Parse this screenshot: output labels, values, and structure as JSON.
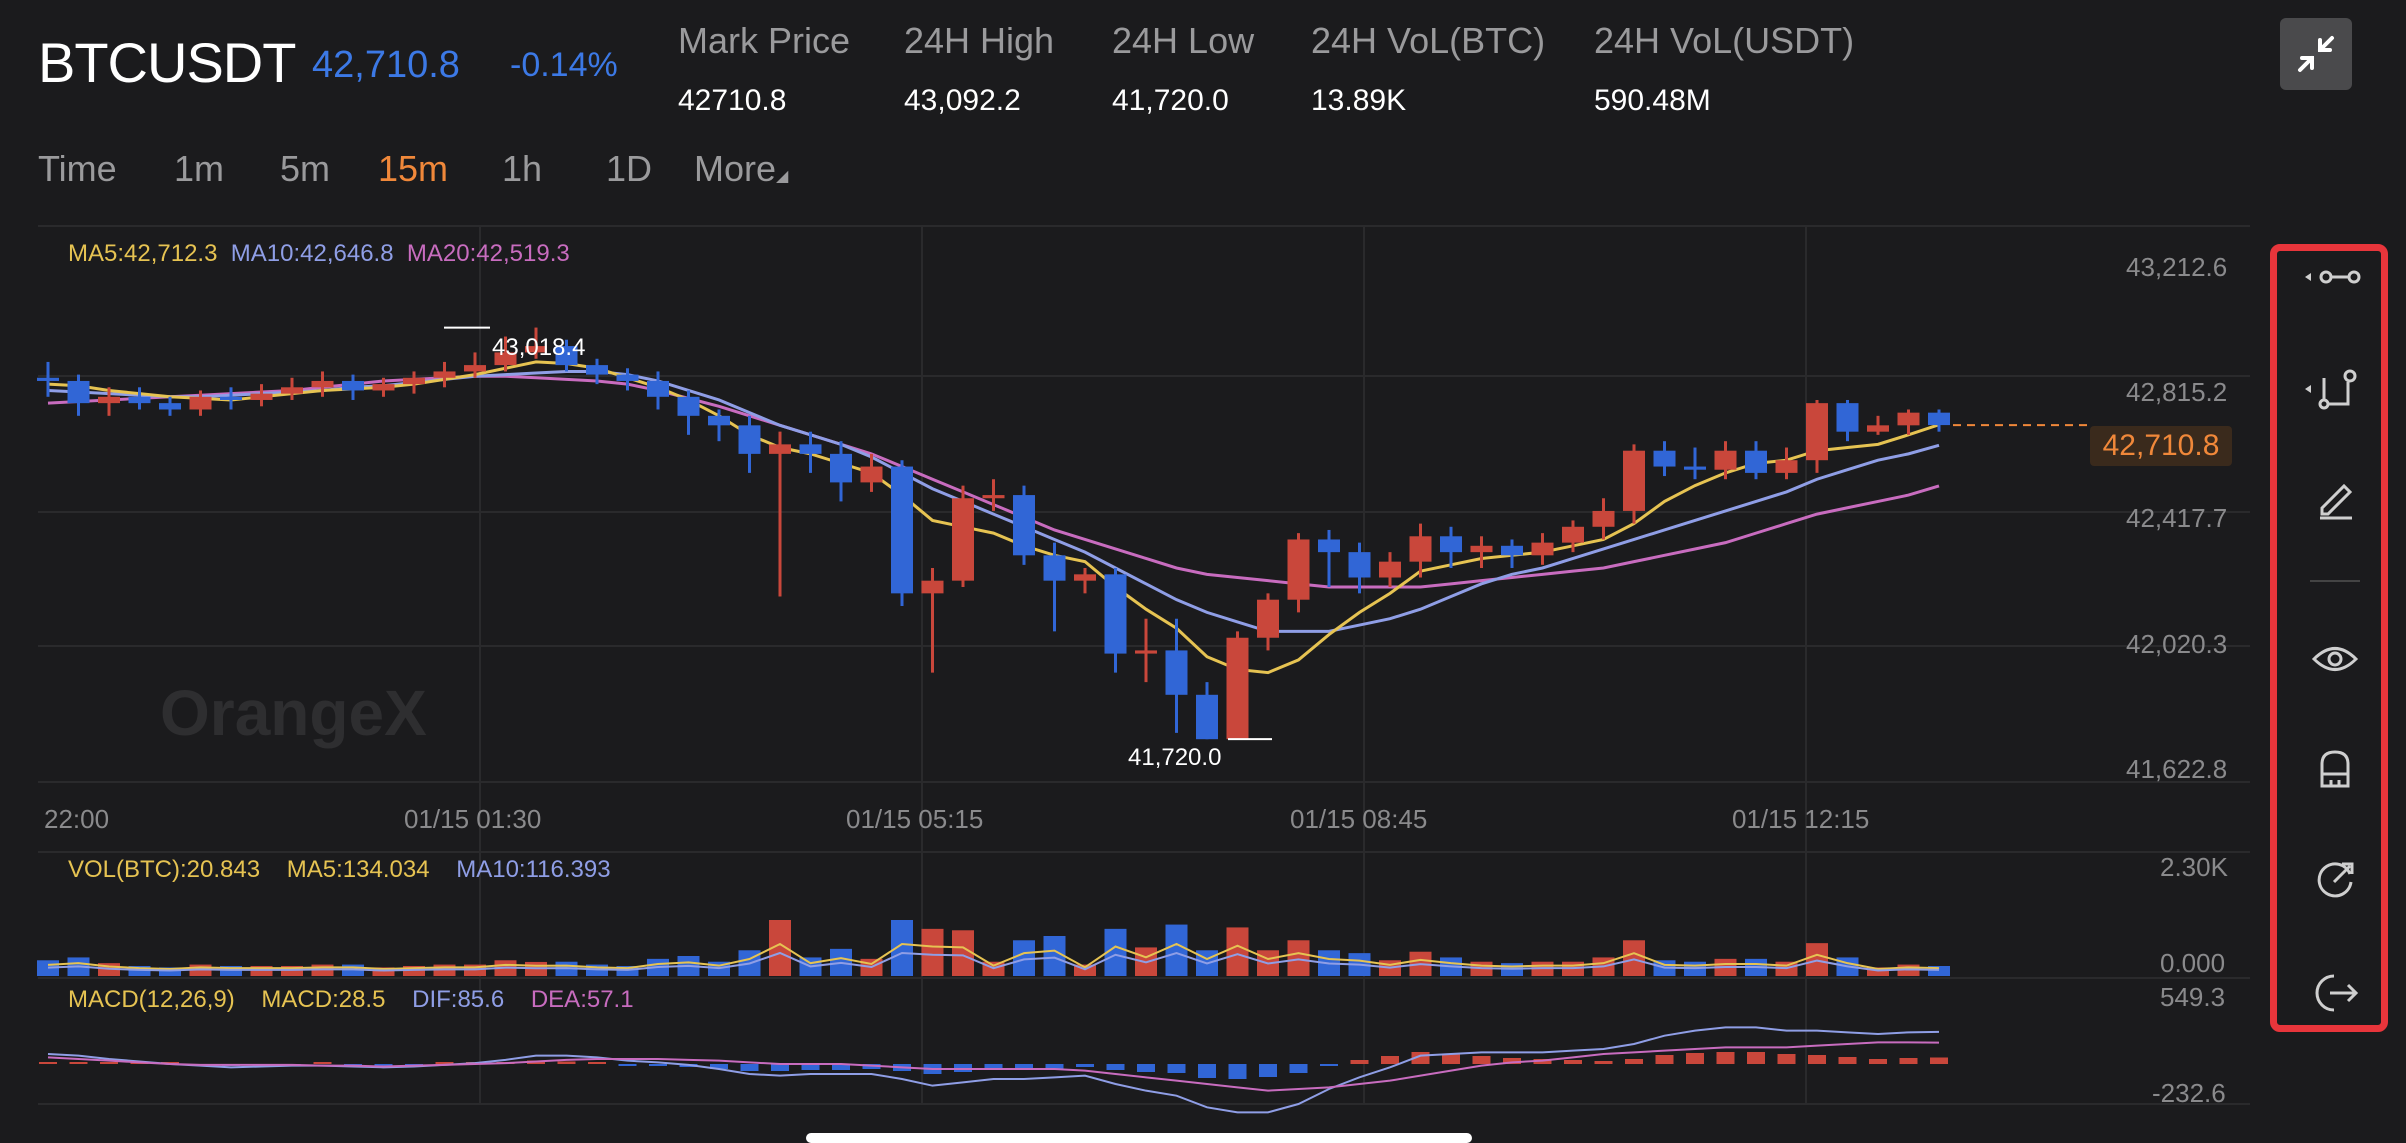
{
  "header": {
    "symbol": "BTCUSDT",
    "last_price": "42,710.8",
    "change": "-0.14%",
    "stats": [
      {
        "label": "Mark Price",
        "value": "42710.8"
      },
      {
        "label": "24H High",
        "value": "43,092.2"
      },
      {
        "label": "24H Low",
        "value": "41,720.0"
      },
      {
        "label": "24H VoL(BTC)",
        "value": "13.89K"
      },
      {
        "label": "24H VoL(USDT)",
        "value": "590.48M"
      }
    ]
  },
  "tabs": [
    {
      "label": "Time"
    },
    {
      "label": "1m"
    },
    {
      "label": "5m"
    },
    {
      "label": "15m",
      "active": true
    },
    {
      "label": "1h"
    },
    {
      "label": "1D"
    },
    {
      "label": "More"
    }
  ],
  "indicators": {
    "ma": [
      {
        "text": "MA5:42,712.3",
        "color": "#e6c352"
      },
      {
        "text": "MA10:42,646.8",
        "color": "#8f9ee6"
      },
      {
        "text": "MA20:42,519.3",
        "color": "#c86cbf"
      }
    ],
    "vol": [
      {
        "text": "VOL(BTC):20.843",
        "color": "#e6c352"
      },
      {
        "text": "MA5:134.034",
        "color": "#e6c352"
      },
      {
        "text": "MA10:116.393",
        "color": "#8f9ee6"
      }
    ],
    "macd": [
      {
        "text": "MACD(12,26,9)",
        "color": "#e6c352"
      },
      {
        "text": "MACD:28.5",
        "color": "#e6c352"
      },
      {
        "text": "DIF:85.6",
        "color": "#8f9ee6"
      },
      {
        "text": "DEA:57.1",
        "color": "#c86cbf"
      }
    ]
  },
  "price_axis": [
    "43,212.6",
    "42,815.2",
    "42,417.7",
    "42,020.3",
    "41,622.8"
  ],
  "current_price_tag": "42,710.8",
  "time_axis": [
    "22:00",
    "01/15 01:30",
    "01/15 05:15",
    "01/15 08:45",
    "01/15 12:15"
  ],
  "vol_axis": [
    "2.30K",
    "0.000"
  ],
  "macd_axis": [
    "549.3",
    "-232.6"
  ],
  "high_marker": "43,018.4",
  "low_marker": "41,720.0",
  "watermark": "OrangeX",
  "tools": [
    "line-tool-icon",
    "shape-tool-icon",
    "pencil-icon",
    "eye-icon",
    "magnet-icon",
    "refresh-icon",
    "exit-icon"
  ],
  "colors": {
    "up": "#c9473b",
    "down": "#3166d6",
    "ma5": "#e6c352",
    "ma10": "#8f9ee6",
    "ma20": "#c86cbf",
    "accent": "#f0883a",
    "highlight": "#e8353b"
  },
  "chart_data": {
    "type": "candlestick",
    "y_range": [
      41622.8,
      43212.6
    ],
    "candles": [
      [
        42860,
        42850,
        42910,
        42800
      ],
      [
        42850,
        42780,
        42870,
        42740
      ],
      [
        42780,
        42800,
        42830,
        42740
      ],
      [
        42800,
        42780,
        42830,
        42760
      ],
      [
        42780,
        42760,
        42800,
        42740
      ],
      [
        42760,
        42800,
        42820,
        42740
      ],
      [
        42800,
        42790,
        42830,
        42760
      ],
      [
        42790,
        42810,
        42840,
        42770
      ],
      [
        42810,
        42830,
        42860,
        42790
      ],
      [
        42830,
        42850,
        42880,
        42800
      ],
      [
        42850,
        42820,
        42870,
        42790
      ],
      [
        42820,
        42840,
        42860,
        42800
      ],
      [
        42840,
        42860,
        42880,
        42810
      ],
      [
        42860,
        42880,
        42910,
        42830
      ],
      [
        42880,
        42900,
        42940,
        42860
      ],
      [
        42900,
        42940,
        42990,
        42880
      ],
      [
        42940,
        42960,
        43018.4,
        42920
      ],
      [
        42960,
        42900,
        42980,
        42880
      ],
      [
        42900,
        42870,
        42920,
        42840
      ],
      [
        42870,
        42850,
        42890,
        42820
      ],
      [
        42850,
        42800,
        42880,
        42760
      ],
      [
        42800,
        42740,
        42820,
        42680
      ],
      [
        42740,
        42710,
        42760,
        42660
      ],
      [
        42710,
        42620,
        42740,
        42560
      ],
      [
        42620,
        42650,
        42690,
        42170
      ],
      [
        42650,
        42620,
        42690,
        42560
      ],
      [
        42620,
        42530,
        42660,
        42470
      ],
      [
        42530,
        42580,
        42620,
        42500
      ],
      [
        42580,
        42180,
        42600,
        42140
      ],
      [
        42180,
        42220,
        42260,
        41930
      ],
      [
        42220,
        42480,
        42520,
        42200
      ],
      [
        42480,
        42490,
        42540,
        42440
      ],
      [
        42490,
        42300,
        42520,
        42270
      ],
      [
        42300,
        42220,
        42340,
        42060
      ],
      [
        42220,
        42240,
        42260,
        42180
      ],
      [
        42240,
        41990,
        42260,
        41930
      ],
      [
        41990,
        42000,
        42100,
        41900
      ],
      [
        42000,
        41860,
        42100,
        41740
      ],
      [
        41860,
        41720,
        41900,
        41720
      ],
      [
        41720,
        42040,
        42060,
        41720
      ],
      [
        42040,
        42160,
        42180,
        42000
      ],
      [
        42160,
        42350,
        42370,
        42120
      ],
      [
        42350,
        42310,
        42380,
        42200
      ],
      [
        42310,
        42230,
        42340,
        42180
      ],
      [
        42230,
        42280,
        42310,
        42200
      ],
      [
        42280,
        42360,
        42400,
        42230
      ],
      [
        42360,
        42310,
        42390,
        42260
      ],
      [
        42310,
        42330,
        42360,
        42260
      ],
      [
        42330,
        42300,
        42350,
        42260
      ],
      [
        42300,
        42340,
        42370,
        42270
      ],
      [
        42340,
        42390,
        42410,
        42310
      ],
      [
        42390,
        42440,
        42480,
        42350
      ],
      [
        42440,
        42630,
        42650,
        42400
      ],
      [
        42630,
        42580,
        42660,
        42550
      ],
      [
        42580,
        42570,
        42640,
        42540
      ],
      [
        42570,
        42630,
        42660,
        42540
      ],
      [
        42630,
        42560,
        42660,
        42540
      ],
      [
        42560,
        42600,
        42640,
        42540
      ],
      [
        42600,
        42780,
        42790,
        42560
      ],
      [
        42780,
        42690,
        42790,
        42660
      ],
      [
        42690,
        42710,
        42740,
        42680
      ],
      [
        42710,
        42750,
        42760,
        42680
      ],
      [
        42750,
        42710.8,
        42760,
        42690
      ]
    ],
    "ma5": [
      42840,
      42835,
      42820,
      42810,
      42800,
      42795,
      42790,
      42800,
      42810,
      42820,
      42825,
      42830,
      42840,
      42855,
      42870,
      42890,
      42910,
      42905,
      42890,
      42860,
      42830,
      42790,
      42740,
      42680,
      42640,
      42620,
      42590,
      42560,
      42490,
      42410,
      42390,
      42370,
      42330,
      42300,
      42280,
      42200,
      42130,
      42070,
      41980,
      41940,
      41930,
      41970,
      42050,
      42120,
      42180,
      42250,
      42270,
      42290,
      42300,
      42310,
      42330,
      42350,
      42400,
      42470,
      42520,
      42560,
      42590,
      42600,
      42630,
      42640,
      42650,
      42680,
      42712
    ],
    "ma10": [
      42820,
      42815,
      42810,
      42805,
      42800,
      42800,
      42805,
      42810,
      42815,
      42820,
      42830,
      42835,
      42845,
      42855,
      42865,
      42870,
      42875,
      42880,
      42880,
      42870,
      42850,
      42820,
      42790,
      42750,
      42710,
      42680,
      42650,
      42610,
      42560,
      42510,
      42470,
      42430,
      42390,
      42350,
      42310,
      42260,
      42210,
      42160,
      42120,
      42090,
      42060,
      42060,
      42060,
      42080,
      42100,
      42130,
      42170,
      42210,
      42240,
      42260,
      42290,
      42320,
      42350,
      42380,
      42410,
      42440,
      42470,
      42500,
      42540,
      42570,
      42600,
      42620,
      42647
    ],
    "ma20": [
      42780,
      42785,
      42790,
      42795,
      42800,
      42805,
      42810,
      42815,
      42820,
      42830,
      42840,
      42850,
      42855,
      42860,
      42865,
      42865,
      42860,
      42855,
      42850,
      42840,
      42820,
      42795,
      42770,
      42740,
      42710,
      42680,
      42650,
      42620,
      42580,
      42540,
      42500,
      42460,
      42420,
      42380,
      42350,
      42320,
      42290,
      42260,
      42240,
      42230,
      42220,
      42210,
      42200,
      42200,
      42200,
      42200,
      42210,
      42220,
      42230,
      42240,
      42250,
      42260,
      42280,
      42300,
      42320,
      42340,
      42370,
      42400,
      42430,
      42450,
      42470,
      42490,
      42519
    ]
  }
}
